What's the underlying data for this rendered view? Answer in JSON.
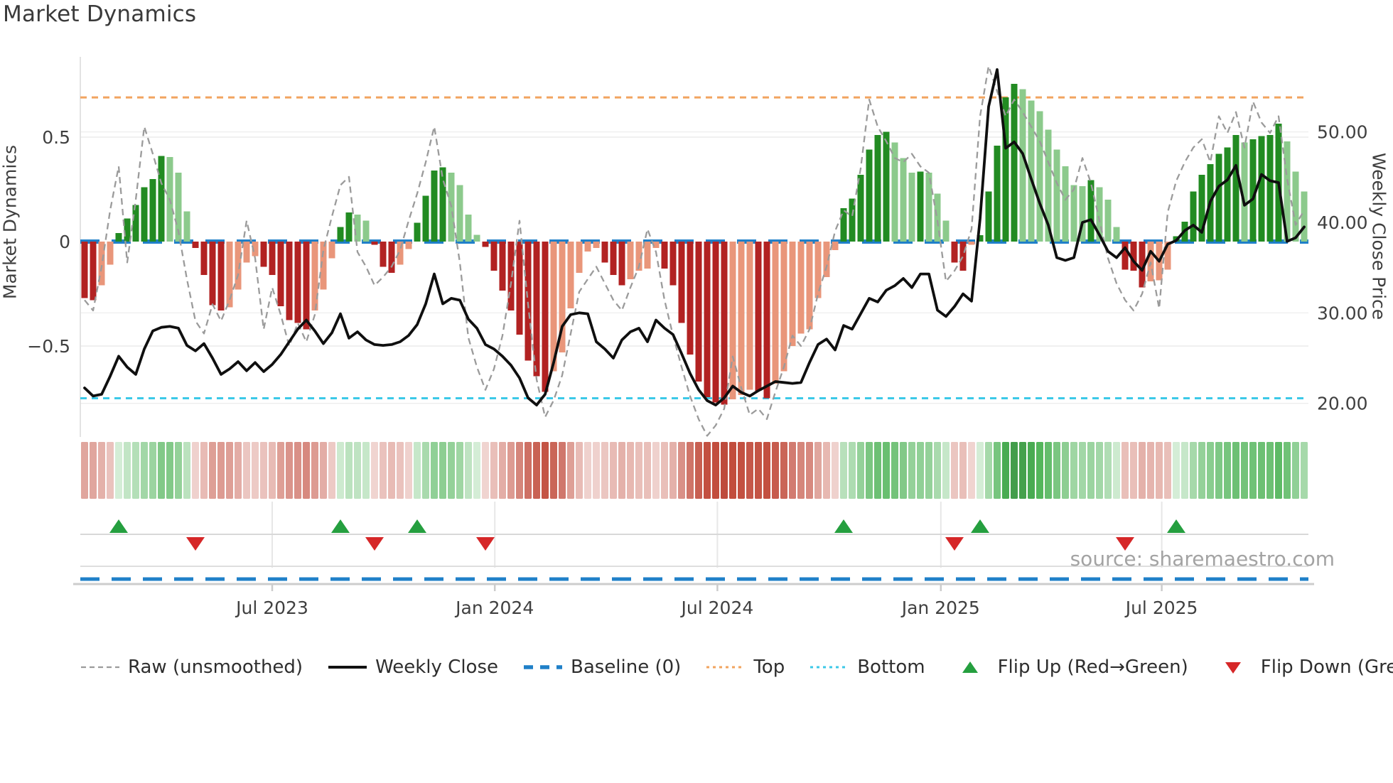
{
  "title": "Market Dynamics",
  "source_note": "source: sharemaestro.com",
  "axes": {
    "left_label": "Market Dynamics",
    "right_label": "Weekly Close Price",
    "left_ticks": [
      {
        "label": "0.5",
        "value": 0.5
      },
      {
        "label": "0",
        "value": 0
      },
      {
        "label": "−0.5",
        "value": -0.5
      }
    ],
    "right_ticks": [
      {
        "label": "50.00",
        "value": 50
      },
      {
        "label": "40.00",
        "value": 40
      },
      {
        "label": "30.00",
        "value": 30
      },
      {
        "label": "20.00",
        "value": 20
      }
    ],
    "x_ticks": [
      {
        "label": "Jul 2023",
        "week": 22
      },
      {
        "label": "Jan 2024",
        "week": 48.1
      },
      {
        "label": "Jul 2024",
        "week": 74.2
      },
      {
        "label": "Jan 2025",
        "week": 100.4
      },
      {
        "label": "Jul 2025",
        "week": 126.3
      }
    ]
  },
  "legend": [
    {
      "id": "raw",
      "label": "Raw (unsmoothed)",
      "swatch": "line",
      "color": "#9b9b9b",
      "width": 2.2,
      "dash": "7,5"
    },
    {
      "id": "close",
      "label": "Weekly Close",
      "swatch": "line",
      "color": "#111111",
      "width": 4,
      "dash": ""
    },
    {
      "id": "baseline",
      "label": "Baseline (0)",
      "swatch": "line",
      "color": "#2080c8",
      "width": 5.5,
      "dash": "13,10"
    },
    {
      "id": "top",
      "label": "Top",
      "swatch": "line",
      "color": "#f2a45f",
      "width": 3,
      "dash": "4,5"
    },
    {
      "id": "bottom",
      "label": "Bottom",
      "swatch": "line",
      "color": "#3cc9e8",
      "width": 3,
      "dash": "4,5"
    },
    {
      "id": "flip-up",
      "label": "Flip Up (Red→Green)",
      "swatch": "tri-up",
      "color": "#259f3f"
    },
    {
      "id": "flip-down",
      "label": "Flip Down (Green→Red)",
      "swatch": "tri-down",
      "color": "#d62728"
    }
  ],
  "colors": {
    "bar_dark_red": "#b22222",
    "bar_light_red": "#e9967a",
    "bar_dark_green": "#228b22",
    "bar_light_green": "#8cca8c",
    "baseline": "#2080c8",
    "top_line": "#f2a45f",
    "bottom_line": "#3cc9e8",
    "raw_line": "#9b9b9b",
    "close_line": "#0f0f0f",
    "flip_up": "#259f3f",
    "flip_down": "#d62728",
    "grid": "#ececec",
    "axis_line": "#cccccc",
    "panel_line": "#d8d8d8",
    "tick_text": "#404040"
  },
  "chart_data": {
    "type": "bar+line combo with heatmap strip and flip markers",
    "x": "weekly index 0-143 (late Jan 2023 to Nov 2025)",
    "n_weeks": 144,
    "left_axis": {
      "label": "Market Dynamics",
      "ticks": [
        0.5,
        0,
        -0.5
      ],
      "range_hint": [
        -0.95,
        0.88
      ]
    },
    "right_axis": {
      "label": "Weekly Close Price",
      "ticks": [
        50,
        40,
        30,
        20
      ],
      "range_hint": [
        18,
        58
      ]
    },
    "reference_lines": {
      "baseline": 0,
      "top": 0.69,
      "bottom": -0.75
    },
    "series": [
      {
        "name": "Momentum bars (smoothed market dynamics)",
        "note": "dark shade = strengthening vs prior week, light shade = weakening; green = positive, red = negative",
        "values": [
          -0.27,
          -0.28,
          -0.21,
          -0.11,
          0.04,
          0.11,
          0.175,
          0.26,
          0.3,
          0.41,
          0.405,
          0.33,
          0.145,
          -0.03,
          -0.16,
          -0.305,
          -0.33,
          -0.315,
          -0.23,
          -0.1,
          -0.07,
          -0.12,
          -0.16,
          -0.31,
          -0.375,
          -0.39,
          -0.42,
          -0.33,
          -0.23,
          -0.08,
          0.07,
          0.14,
          0.13,
          0.1,
          -0.015,
          -0.12,
          -0.15,
          -0.11,
          -0.035,
          0.09,
          0.22,
          0.34,
          0.355,
          0.33,
          0.27,
          0.13,
          0.033,
          -0.025,
          -0.14,
          -0.235,
          -0.33,
          -0.445,
          -0.57,
          -0.645,
          -0.72,
          -0.62,
          -0.53,
          -0.32,
          -0.15,
          -0.047,
          -0.03,
          -0.1,
          -0.16,
          -0.21,
          -0.18,
          -0.14,
          -0.13,
          -0.03,
          -0.13,
          -0.21,
          -0.39,
          -0.54,
          -0.67,
          -0.745,
          -0.77,
          -0.78,
          -0.755,
          -0.735,
          -0.71,
          -0.715,
          -0.75,
          -0.68,
          -0.62,
          -0.5,
          -0.44,
          -0.42,
          -0.27,
          -0.17,
          -0.04,
          0.16,
          0.205,
          0.32,
          0.44,
          0.51,
          0.525,
          0.475,
          0.4,
          0.33,
          0.335,
          0.33,
          0.23,
          0.1,
          -0.1,
          -0.14,
          -0.015,
          0.03,
          0.24,
          0.46,
          0.69,
          0.755,
          0.73,
          0.675,
          0.625,
          0.535,
          0.44,
          0.36,
          0.27,
          0.265,
          0.295,
          0.26,
          0.2,
          0.07,
          -0.135,
          -0.14,
          -0.22,
          -0.19,
          -0.185,
          -0.135,
          0.025,
          0.095,
          0.24,
          0.32,
          0.37,
          0.42,
          0.45,
          0.51,
          0.475,
          0.49,
          0.505,
          0.51,
          0.565,
          0.48,
          0.335,
          0.24
        ]
      },
      {
        "name": "Raw (unsmoothed)",
        "values": [
          -0.28,
          -0.33,
          -0.12,
          0.15,
          0.36,
          -0.1,
          0.2,
          0.55,
          0.42,
          0.28,
          0.2,
          0.05,
          -0.18,
          -0.38,
          -0.44,
          -0.3,
          -0.38,
          -0.28,
          -0.16,
          0.1,
          -0.08,
          -0.42,
          -0.22,
          -0.35,
          -0.5,
          -0.39,
          -0.48,
          -0.35,
          -0.04,
          0.12,
          0.27,
          0.31,
          -0.05,
          -0.12,
          -0.21,
          -0.17,
          -0.12,
          -0.04,
          0.1,
          0.23,
          0.38,
          0.55,
          0.3,
          0.17,
          -0.1,
          -0.46,
          -0.6,
          -0.71,
          -0.61,
          -0.45,
          -0.2,
          0.1,
          -0.3,
          -0.66,
          -0.84,
          -0.76,
          -0.64,
          -0.44,
          -0.24,
          -0.18,
          -0.12,
          -0.2,
          -0.28,
          -0.33,
          -0.22,
          -0.12,
          0.06,
          -0.05,
          -0.28,
          -0.45,
          -0.6,
          -0.74,
          -0.85,
          -0.93,
          -0.88,
          -0.8,
          -0.55,
          -0.7,
          -0.83,
          -0.8,
          -0.85,
          -0.72,
          -0.6,
          -0.45,
          -0.5,
          -0.42,
          -0.25,
          -0.12,
          0.05,
          0.15,
          0.12,
          0.35,
          0.68,
          0.55,
          0.48,
          0.4,
          0.38,
          0.42,
          0.36,
          0.33,
          0.1,
          -0.19,
          -0.14,
          -0.07,
          0.06,
          0.6,
          0.84,
          0.72,
          0.6,
          0.68,
          0.62,
          0.55,
          0.48,
          0.38,
          0.28,
          0.2,
          0.25,
          0.4,
          0.28,
          0.1,
          -0.08,
          -0.2,
          -0.28,
          -0.33,
          -0.25,
          -0.1,
          -0.32,
          0.14,
          0.29,
          0.38,
          0.45,
          0.49,
          0.38,
          0.6,
          0.52,
          0.62,
          0.45,
          0.67,
          0.57,
          0.52,
          0.6,
          0.3,
          0.08,
          0.15
        ]
      },
      {
        "name": "Weekly Close",
        "axis": "right",
        "values": [
          21.7,
          20.8,
          21.0,
          23.0,
          25.2,
          24.0,
          23.2,
          26.0,
          28.0,
          28.4,
          28.5,
          28.3,
          26.4,
          25.8,
          26.6,
          25.0,
          23.2,
          23.8,
          24.6,
          23.6,
          24.5,
          23.5,
          24.3,
          25.4,
          26.8,
          28.2,
          29.2,
          28.0,
          26.6,
          27.8,
          29.9,
          27.2,
          27.9,
          27.0,
          26.5,
          26.4,
          26.5,
          26.8,
          27.5,
          28.7,
          31.0,
          34.3,
          31.0,
          31.6,
          31.4,
          29.3,
          28.3,
          26.5,
          26.0,
          25.2,
          24.2,
          22.8,
          20.6,
          19.8,
          21.0,
          24.5,
          28.5,
          29.8,
          30.0,
          29.9,
          26.8,
          26.0,
          25.0,
          27.0,
          27.9,
          28.3,
          26.8,
          29.2,
          28.3,
          27.6,
          25.5,
          23.3,
          21.5,
          20.3,
          19.8,
          20.6,
          21.9,
          21.2,
          20.8,
          21.4,
          21.9,
          22.4,
          22.3,
          22.2,
          22.3,
          24.5,
          26.5,
          27.1,
          25.9,
          28.6,
          28.2,
          29.9,
          31.6,
          31.2,
          32.5,
          33.0,
          33.8,
          32.8,
          34.3,
          34.3,
          30.3,
          29.6,
          30.7,
          32.1,
          31.3,
          40.4,
          52.8,
          56.9,
          48.2,
          48.9,
          47.6,
          44.8,
          42.1,
          39.7,
          36.1,
          35.8,
          36.1,
          40.0,
          40.3,
          38.6,
          36.8,
          36.1,
          37.2,
          35.7,
          34.7,
          36.8,
          35.7,
          37.6,
          38.0,
          39.1,
          39.7,
          38.9,
          42.3,
          44.0,
          44.7,
          46.3,
          41.9,
          42.6,
          45.3,
          44.6,
          44.4,
          37.9,
          38.3,
          39.5
        ]
      }
    ],
    "flip_up_weeks": [
      4,
      30,
      39,
      89,
      105,
      128
    ],
    "flip_down_weeks": [
      13,
      34,
      47,
      102,
      122
    ],
    "heatmap_strip": "weekly cells, hue = sign of momentum, intensity = |momentum|"
  }
}
